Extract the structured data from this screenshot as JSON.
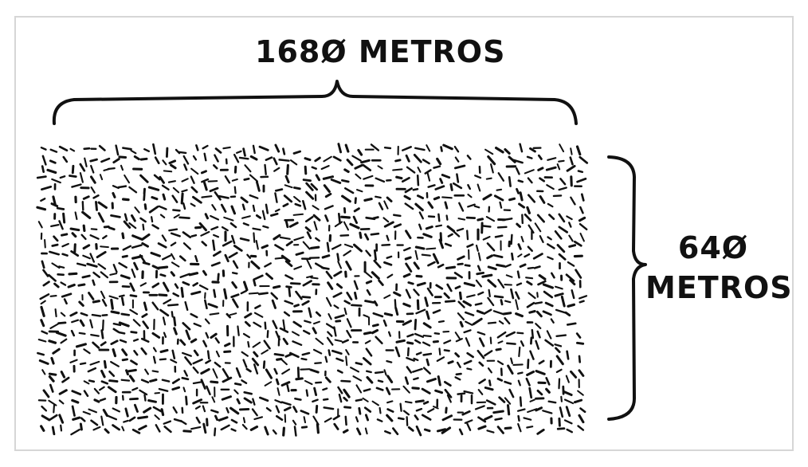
{
  "diagram": {
    "width_label": "168Ø METROS",
    "height_number": "64Ø",
    "height_unit": "METROS",
    "ink_color": "#111111"
  }
}
